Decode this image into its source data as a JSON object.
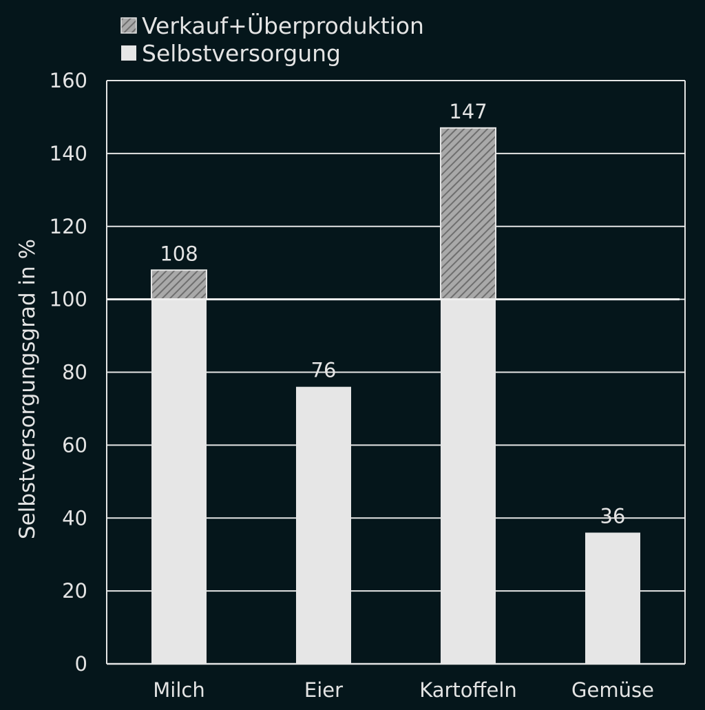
{
  "chart_data": {
    "type": "bar",
    "stacked": true,
    "categories": [
      "Milch",
      "Eier",
      "Kartoffeln",
      "Gemüse"
    ],
    "series": [
      {
        "name": "Selbstversorgung",
        "values": [
          100,
          76,
          100,
          36
        ],
        "color": "#e6e6e6"
      },
      {
        "name": "Verkauf+Überproduktion",
        "values": [
          8,
          0,
          47,
          0
        ],
        "color": "#8a8a8a",
        "pattern": "diagonal-hatch"
      }
    ],
    "totals": [
      108,
      76,
      147,
      36
    ],
    "data_labels": [
      "108",
      "76",
      "147",
      "36"
    ],
    "ylabel": "Selbstversorgungsgrad in %",
    "xlabel": "",
    "ylim": [
      0,
      160
    ],
    "yticks": [
      0,
      20,
      40,
      60,
      80,
      100,
      120,
      140,
      160
    ],
    "grid": true,
    "legend": {
      "position": "top-left",
      "entries": [
        "Verkauf+Überproduktion",
        "Selbstversorgung"
      ]
    },
    "colors": {
      "background": "#05161b",
      "grid": "#e6e6e6",
      "text": "#e4e4e4"
    }
  }
}
